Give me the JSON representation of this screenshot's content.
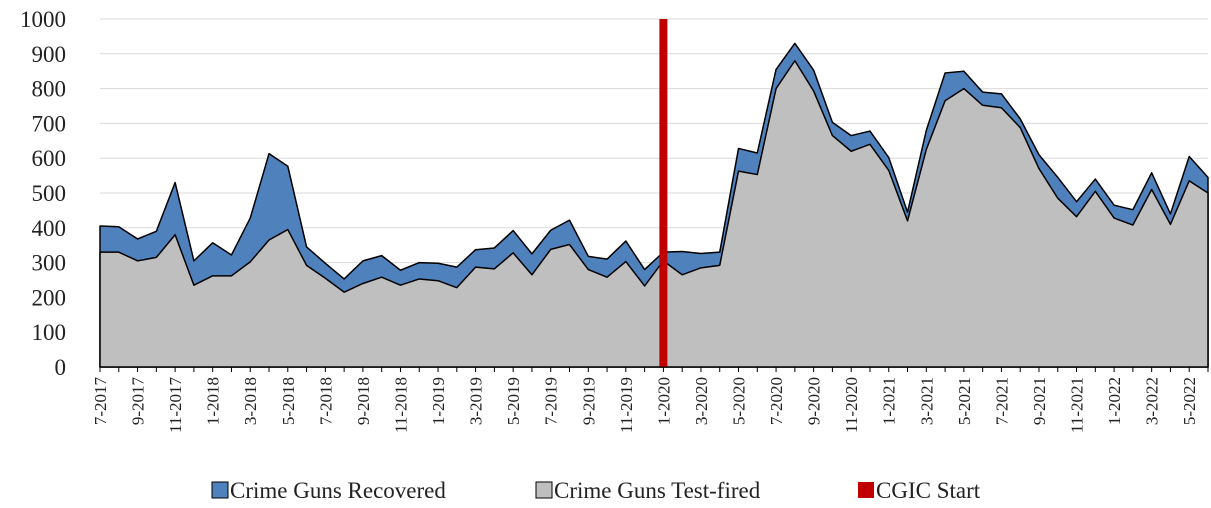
{
  "chart_data": {
    "type": "area",
    "categories": [
      "7-2017",
      null,
      "9-2017",
      null,
      "11-2017",
      null,
      "1-2018",
      null,
      "3-2018",
      null,
      "5-2018",
      null,
      "7-2018",
      null,
      "9-2018",
      null,
      "11-2018",
      null,
      "1-2019",
      null,
      "3-2019",
      null,
      "5-2019",
      null,
      "7-2019",
      null,
      "9-2019",
      null,
      "11-2019",
      null,
      "1-2020",
      null,
      "3-2020",
      null,
      "5-2020",
      null,
      "7-2020",
      null,
      "9-2020",
      null,
      "11-2020",
      null,
      "1-2021",
      null,
      "3-2021",
      null,
      "5-2021",
      null,
      "7-2021",
      null,
      "9-2021",
      null,
      "11-2021",
      null,
      "1-2022",
      null,
      "3-2022",
      null,
      "5-2022",
      null
    ],
    "series": [
      {
        "name": "Crime Guns Recovered",
        "color": "#4f81bd",
        "values": [
          405,
          403,
          368,
          390,
          530,
          305,
          357,
          322,
          428,
          613,
          577,
          345,
          298,
          253,
          305,
          320,
          278,
          300,
          298,
          287,
          337,
          342,
          392,
          325,
          393,
          422,
          318,
          310,
          362,
          280,
          330,
          332,
          326,
          330,
          628,
          615,
          855,
          930,
          853,
          703,
          665,
          678,
          602,
          445,
          680,
          845,
          850,
          790,
          785,
          713,
          610,
          545,
          475,
          540,
          465,
          452,
          558,
          440,
          605,
          545
        ]
      },
      {
        "name": "Crime Guns Test-fired",
        "color": "#bfbfbf",
        "values": [
          330,
          330,
          305,
          315,
          380,
          235,
          262,
          262,
          302,
          365,
          395,
          292,
          255,
          215,
          240,
          258,
          235,
          253,
          248,
          228,
          287,
          282,
          328,
          265,
          338,
          352,
          280,
          258,
          303,
          233,
          305,
          265,
          285,
          292,
          563,
          553,
          800,
          880,
          793,
          665,
          620,
          640,
          565,
          420,
          625,
          765,
          800,
          752,
          745,
          688,
          570,
          485,
          432,
          505,
          428,
          408,
          510,
          410,
          535,
          500
        ]
      }
    ],
    "vlines": [
      {
        "name": "CGIC Start",
        "color": "#c00000",
        "x": "1-2020"
      }
    ],
    "ylim": [
      0,
      1000
    ],
    "yticks": [
      0,
      100,
      200,
      300,
      400,
      500,
      600,
      700,
      800,
      900,
      1000
    ],
    "grid": true,
    "legend": "bottom"
  }
}
